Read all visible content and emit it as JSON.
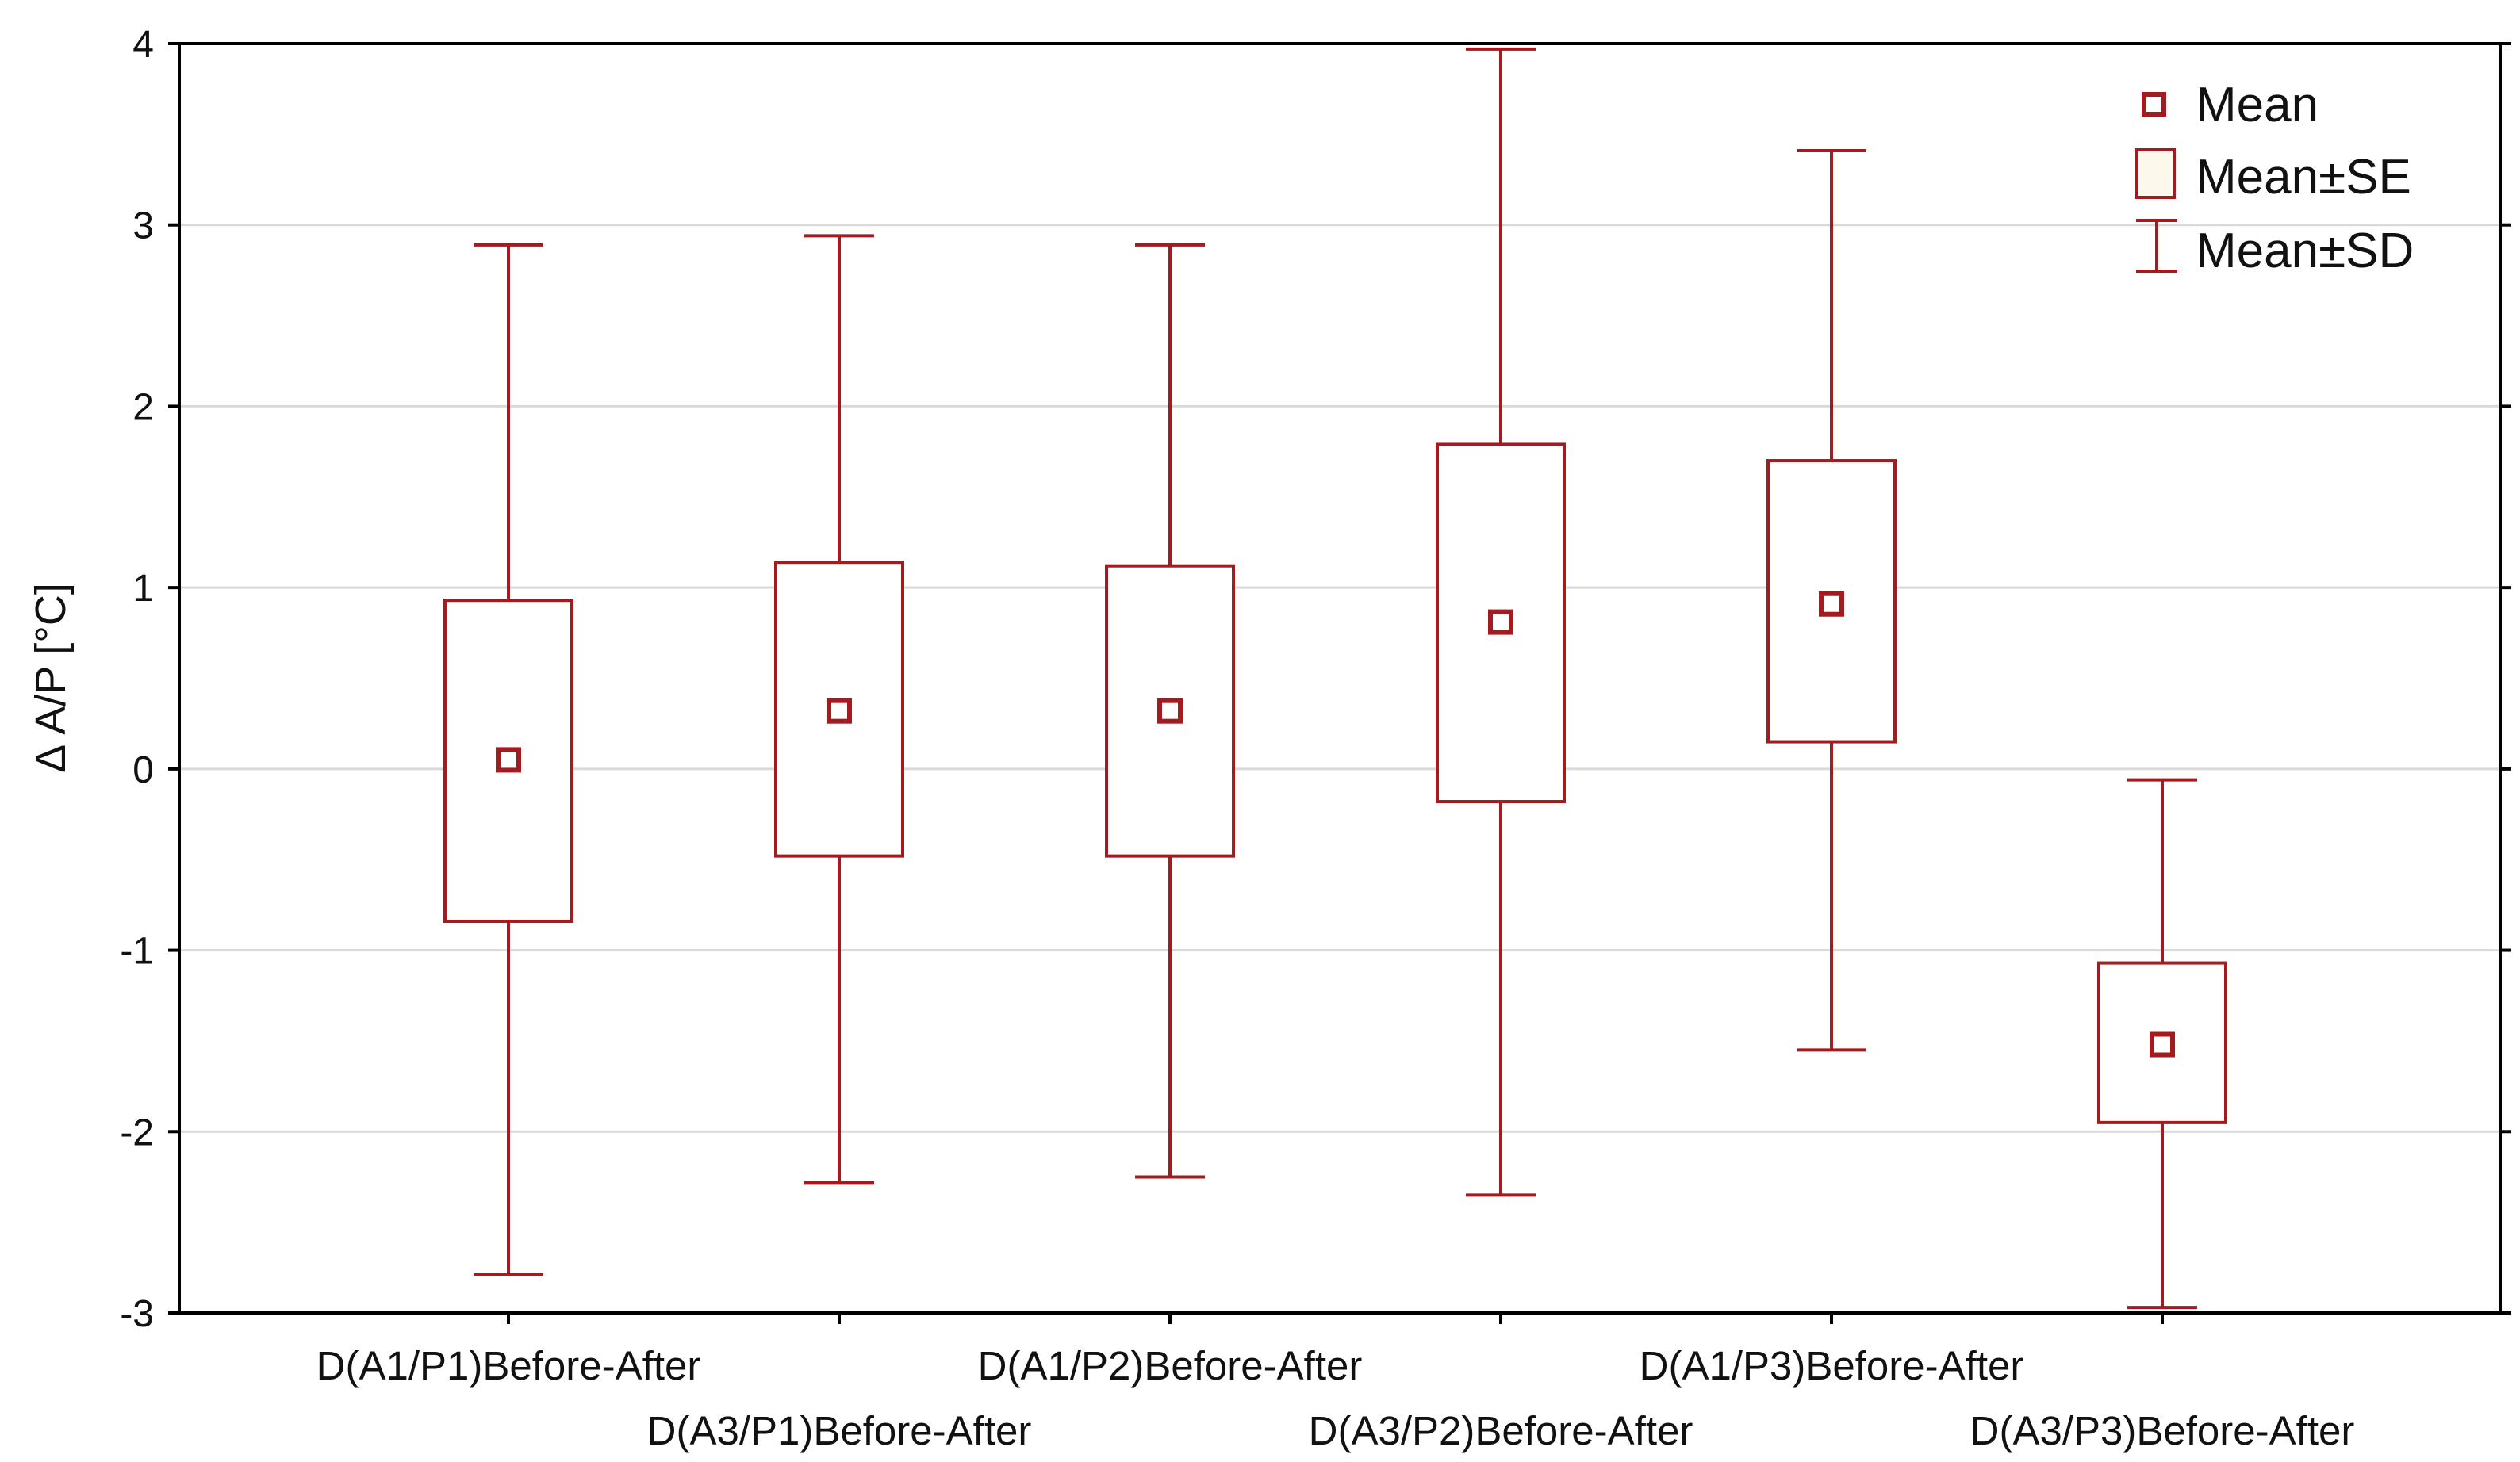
{
  "chart_data": {
    "type": "box",
    "title": "",
    "ylabel": "Δ A/P [°C]",
    "xlabel": "",
    "ylim": [
      -3,
      4
    ],
    "yticks": [
      "-3",
      "-2",
      "-1",
      "0",
      "1",
      "2",
      "3",
      "4"
    ],
    "grid": true,
    "legend_position": "top-right",
    "color": "#a31a1f",
    "legend": {
      "mean": "Mean",
      "se": "Mean±SE",
      "sd": "Mean±SD"
    },
    "categories": [
      "D(A1/P1)Before-After",
      "D(A3/P1)Before-After",
      "D(A1/P2)Before-After",
      "D(A3/P2)Before-After",
      "D(A1/P3)Before-After",
      "D(A3/P3)Before-After"
    ],
    "series": [
      {
        "category": "D(A1/P1)Before-After",
        "mean": 0.05,
        "se_low": -0.84,
        "se_high": 0.93,
        "sd_low": -2.79,
        "sd_high": 2.89
      },
      {
        "category": "D(A3/P1)Before-After",
        "mean": 0.32,
        "se_low": -0.48,
        "se_high": 1.14,
        "sd_low": -2.28,
        "sd_high": 2.94
      },
      {
        "category": "D(A1/P2)Before-After",
        "mean": 0.32,
        "se_low": -0.48,
        "se_high": 1.12,
        "sd_low": -2.25,
        "sd_high": 2.89
      },
      {
        "category": "D(A3/P2)Before-After",
        "mean": 0.81,
        "se_low": -0.18,
        "se_high": 1.79,
        "sd_low": -2.35,
        "sd_high": 3.97
      },
      {
        "category": "D(A1/P3)Before-After",
        "mean": 0.91,
        "se_low": 0.15,
        "se_high": 1.7,
        "sd_low": -1.55,
        "sd_high": 3.41
      },
      {
        "category": "D(A3/P3)Before-After",
        "mean": -1.52,
        "se_low": -1.95,
        "se_high": -1.07,
        "sd_low": -2.97,
        "sd_high": -0.06
      }
    ]
  }
}
